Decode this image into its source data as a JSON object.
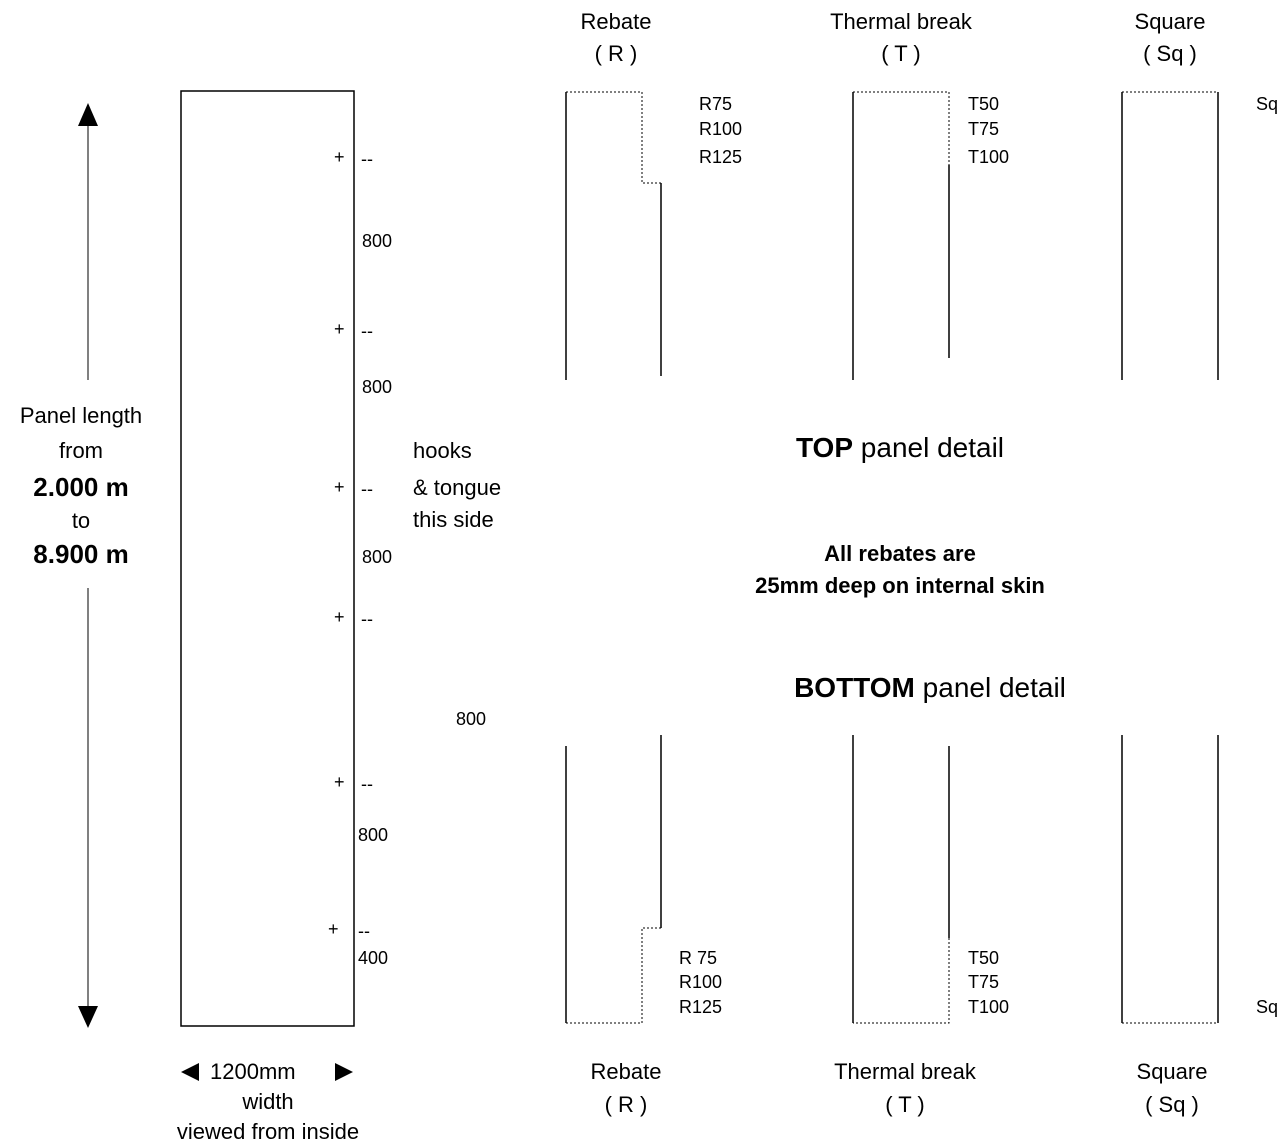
{
  "left_panel": {
    "length_label_line1": "Panel length",
    "length_label_line2": "from",
    "length_min": "2.000 m",
    "length_to": "to",
    "length_max": "8.900 m",
    "width_label": "1200mm",
    "width_word": "width",
    "viewed_from": "viewed from inside",
    "hook_mark": "+",
    "dash_mark": "--",
    "spacings": [
      "800",
      "800",
      "800",
      "800",
      "800",
      "400"
    ],
    "side_note": [
      "hooks",
      "& tongue",
      "this side"
    ]
  },
  "top_detail": {
    "heading_bold": "TOP",
    "heading_rest": " panel detail",
    "columns": [
      {
        "name": "Rebate",
        "code": "( R )",
        "codes": [
          "R75",
          "R100",
          "R125"
        ]
      },
      {
        "name": "Thermal break",
        "code": "( T )",
        "codes": [
          "T50",
          "T75",
          "T100"
        ]
      },
      {
        "name": "Square",
        "code": "( Sq )",
        "codes": [
          "Sq"
        ]
      }
    ]
  },
  "note": {
    "line1": "All rebates are",
    "line2": "25mm deep on internal skin"
  },
  "bottom_detail": {
    "heading_bold": "BOTTOM",
    "heading_rest": " panel detail",
    "columns": [
      {
        "name": "Rebate",
        "code": "( R )",
        "codes": [
          "R 75",
          "R100",
          "R125"
        ]
      },
      {
        "name": "Thermal break",
        "code": "( T )",
        "codes": [
          "T50",
          "T75",
          "T100"
        ]
      },
      {
        "name": "Square",
        "code": "( Sq )",
        "codes": [
          "Sq"
        ]
      }
    ]
  }
}
